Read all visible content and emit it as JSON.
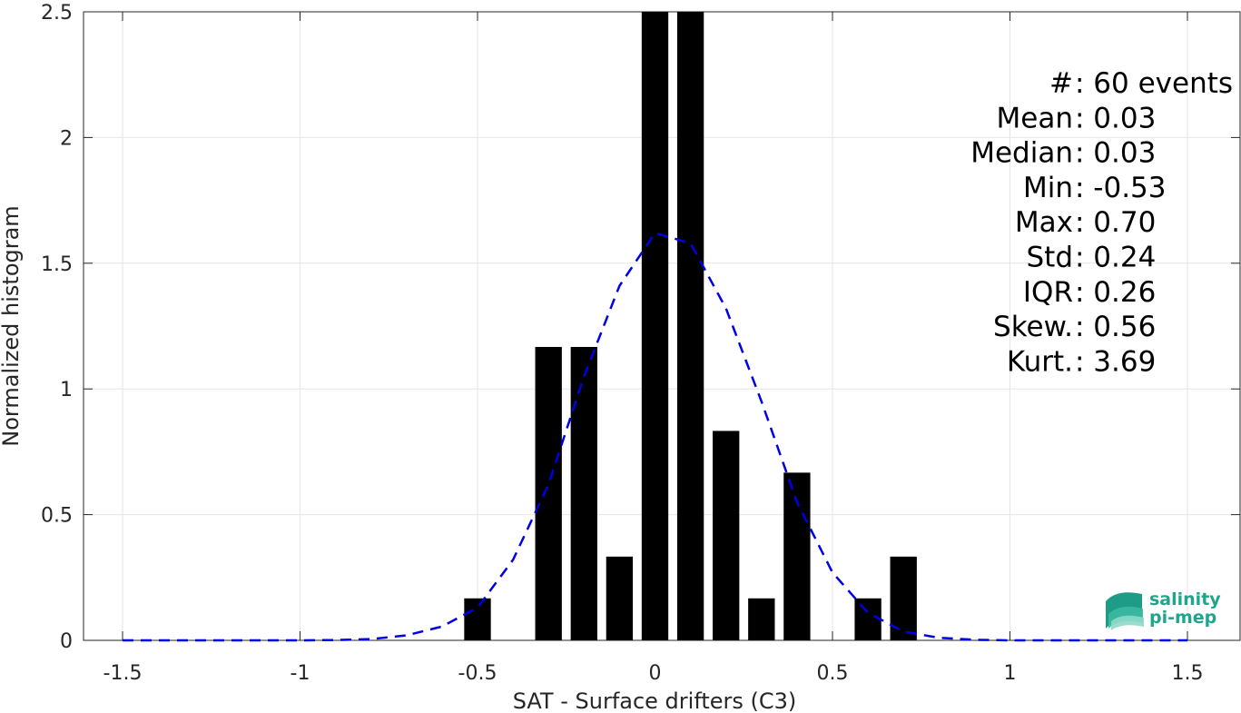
{
  "chart_data": {
    "type": "bar",
    "xlabel": "SAT - Surface drifters (C3)",
    "ylabel": "Normalized histogram",
    "xlim": [
      -1.5,
      1.5
    ],
    "ylim": [
      0,
      2.5
    ],
    "xticks": [
      "-1.5",
      "-1",
      "-0.5",
      "0",
      "0.5",
      "1",
      "1.5"
    ],
    "yticks": [
      "0",
      "0.5",
      "1",
      "1.5",
      "2",
      "2.5"
    ],
    "grid": true,
    "bar_color": "#000000",
    "bar_width": 0.075,
    "bars": [
      {
        "x": -0.5,
        "value": 0.167
      },
      {
        "x": -0.3,
        "value": 1.167
      },
      {
        "x": -0.2,
        "value": 1.167
      },
      {
        "x": -0.1,
        "value": 0.333
      },
      {
        "x": 0.0,
        "value": 2.5
      },
      {
        "x": 0.1,
        "value": 2.5
      },
      {
        "x": 0.2,
        "value": 0.833
      },
      {
        "x": 0.3,
        "value": 0.167
      },
      {
        "x": 0.4,
        "value": 0.667
      },
      {
        "x": 0.6,
        "value": 0.167
      },
      {
        "x": 0.7,
        "value": 0.333
      }
    ],
    "fit_curve": {
      "style": "dashed",
      "color": "#0000e6",
      "x": [
        -1.5,
        -1.4,
        -1.3,
        -1.2,
        -1.1,
        -1.0,
        -0.9,
        -0.8,
        -0.7,
        -0.6,
        -0.5,
        -0.4,
        -0.3,
        -0.2,
        -0.1,
        0.0,
        0.1,
        0.2,
        0.3,
        0.4,
        0.5,
        0.6,
        0.7,
        0.8,
        0.9,
        1.0,
        1.1,
        1.2,
        1.3,
        1.4,
        1.5
      ],
      "y": [
        0,
        0,
        0,
        0,
        0,
        0,
        0.001,
        0.005,
        0.02,
        0.055,
        0.13,
        0.32,
        0.62,
        1.05,
        1.41,
        1.62,
        1.58,
        1.32,
        0.95,
        0.55,
        0.27,
        0.11,
        0.035,
        0.01,
        0.002,
        0,
        0,
        0,
        0,
        0,
        0
      ]
    },
    "stats": [
      {
        "label": "#  ",
        "value": ": 60 events"
      },
      {
        "label": "Mean ",
        "value": ": 0.03"
      },
      {
        "label": "Median ",
        "value": ": 0.03"
      },
      {
        "label": "Min ",
        "value": ": -0.53"
      },
      {
        "label": "Max ",
        "value": ": 0.70"
      },
      {
        "label": "Std ",
        "value": ": 0.24"
      },
      {
        "label": "IQR ",
        "value": ": 0.26"
      },
      {
        "label": "Skew. ",
        "value": ": 0.56"
      },
      {
        "label": "Kurt. ",
        "value": ": 3.69"
      }
    ]
  },
  "logo": {
    "line1": "salinity",
    "line2": "pi-mep",
    "color": "#1fa58c"
  }
}
